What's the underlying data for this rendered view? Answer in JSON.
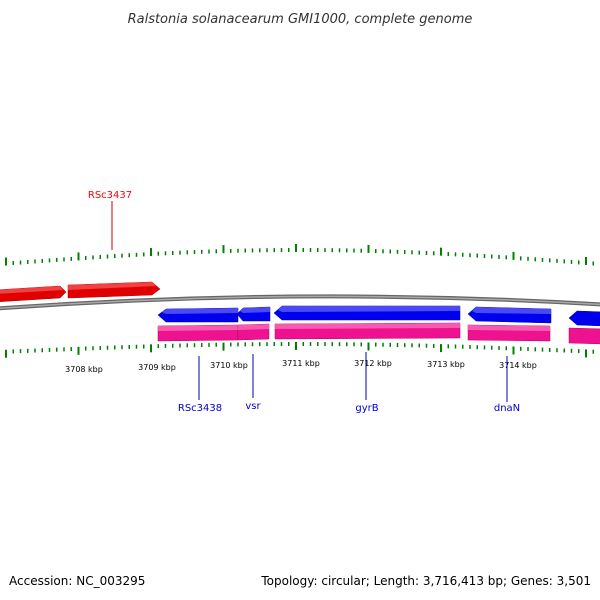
{
  "title": "Ralstonia solanacearum GMI1000, complete genome",
  "footer": {
    "accession": "Accession: NC_003295",
    "summary": "Topology: circular; Length: 3,716,413 bp; Genes: 3,501"
  },
  "colors": {
    "forward_gene": "#ff0000",
    "reverse_gene": "#0000ff",
    "cds": "#ff1493",
    "backbone": "#888888",
    "tick": "#008000",
    "forward_label": "#ff0000",
    "reverse_label": "#0000cc"
  },
  "scale_labels": [
    "3708 kbp",
    "3709 kbp",
    "3710 kbp",
    "3711 kbp",
    "3712 kbp",
    "3713 kbp",
    "3714 kbp"
  ],
  "gene_labels": [
    {
      "text": "RSc3437",
      "strand": "forward"
    },
    {
      "text": "RSc3438",
      "strand": "reverse"
    },
    {
      "text": "vsr",
      "strand": "reverse"
    },
    {
      "text": "gyrB",
      "strand": "reverse"
    },
    {
      "text": "dnaN",
      "strand": "reverse"
    }
  ]
}
